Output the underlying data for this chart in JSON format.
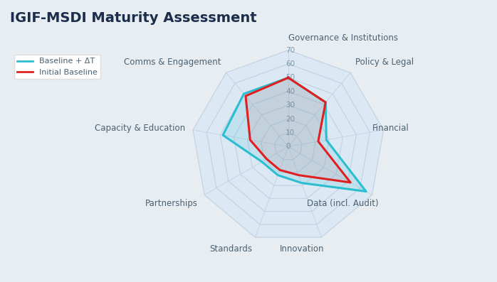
{
  "title": "IGIF-MSDI Maturity Assessment",
  "title_color": "#1b2e4b",
  "background_color": "#e8edf2",
  "categories": [
    "Governance & Institutions",
    "Policy & Legal",
    "Financial",
    "Data (incl. Audit)",
    "Innovation",
    "Standards",
    "Partnerships",
    "Capacity & Education",
    "Comms & Engagement"
  ],
  "baseline_delta": [
    50,
    42,
    28,
    65,
    28,
    22,
    22,
    48,
    50
  ],
  "initial_baseline": [
    50,
    42,
    22,
    52,
    22,
    18,
    18,
    28,
    48
  ],
  "max_value": 70,
  "tick_values": [
    0,
    10,
    20,
    30,
    40,
    50,
    60,
    70
  ],
  "grid_line_color": "#c5d5e5",
  "grid_fill_colors": [
    "#dce8f2",
    "#cddff0",
    "#bfd5ec",
    "#b2cce8"
  ],
  "spoke_color": "#c5d5e5",
  "baseline_delta_color": "#2abfcf",
  "initial_baseline_color": "#e02020",
  "legend_baseline_delta": "Baseline + ΔT",
  "legend_initial_baseline": "Initial Baseline",
  "label_color": "#4a6070",
  "tick_label_color": "#7a9aaa",
  "label_fontsize": 8.5,
  "tick_fontsize": 7.5,
  "title_fontsize": 14
}
